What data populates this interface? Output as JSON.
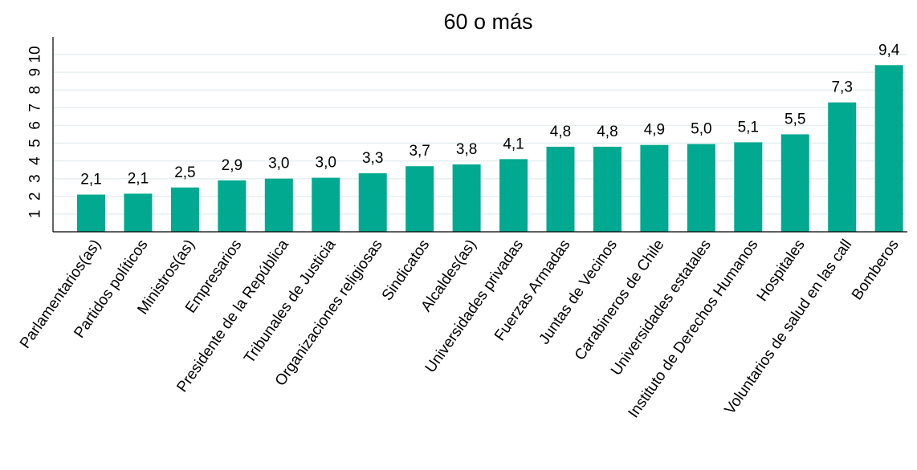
{
  "chart_data": {
    "type": "bar",
    "title": "60 o más",
    "xlabel": "",
    "ylabel": "",
    "ylim": [
      0,
      10
    ],
    "yticks": [
      1,
      2,
      3,
      4,
      5,
      6,
      7,
      8,
      9,
      10
    ],
    "grid": true,
    "categories": [
      "Parlamentarios(as)",
      "Partidos políticos",
      "Ministros(as)",
      "Empresarios",
      "Presidente de la República",
      "Tribunales de Justicia",
      "Organizaciones religiosas",
      "Sindicatos",
      "Alcaldes(as)",
      "Universidades privadas",
      "Fuerzas Armadas",
      "Juntas de Vecinos",
      "Carabineros de Chile",
      "Universidades estatales",
      "Instituto de Derechos Humanos",
      "Hospitales",
      "Voluntarios de salud en las call",
      "Bomberos"
    ],
    "values": [
      2.1,
      2.15,
      2.5,
      2.9,
      3.0,
      3.05,
      3.3,
      3.7,
      3.8,
      4.1,
      4.8,
      4.8,
      4.9,
      4.95,
      5.05,
      5.5,
      7.3,
      9.4
    ],
    "data_labels": [
      "2,1",
      "2,1",
      "2,5",
      "2,9",
      "3,0",
      "3,0",
      "3,3",
      "3,7",
      "3,8",
      "4,1",
      "4,8",
      "4,8",
      "4,9",
      "5,0",
      "5,1",
      "5,5",
      "7,3",
      "9,4"
    ],
    "bar_color": "#00a98f"
  }
}
